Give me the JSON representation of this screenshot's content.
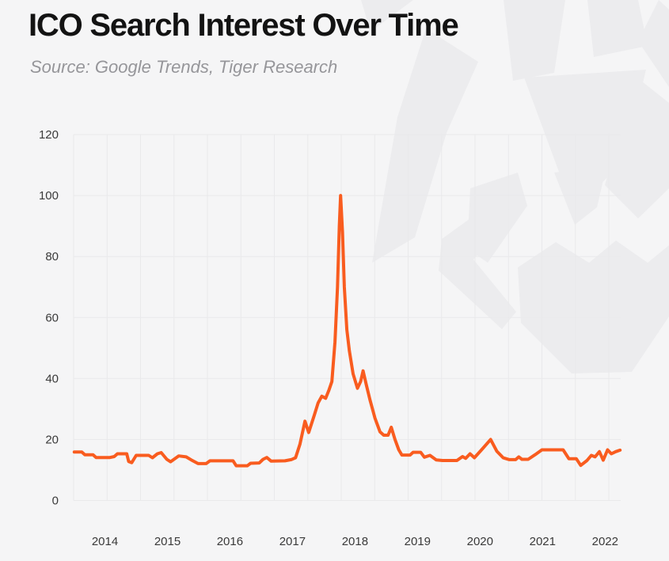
{
  "header": {
    "title": "ICO Search Interest Over Time",
    "subtitle": "Source: Google Trends, Tiger Research"
  },
  "colors": {
    "background": "#f5f5f6",
    "line": "#f95c1f",
    "grid": "#e9e9eb",
    "axis_text": "#3a3a3a",
    "watermark": "#ececee"
  },
  "chart_data": {
    "type": "line",
    "title": "ICO Search Interest Over Time",
    "source": "Google Trends, Tiger Research",
    "xlabel": "",
    "ylabel": "",
    "x_unit": "decimal_year",
    "x_range": [
      2013.5,
      2022.25
    ],
    "ylim": [
      0,
      120
    ],
    "y_ticks": [
      0,
      20,
      40,
      60,
      80,
      100,
      120
    ],
    "x_ticks": [
      2014,
      2015,
      2016,
      2017,
      2018,
      2019,
      2020,
      2021,
      2022
    ],
    "grid": "both",
    "legend": "none",
    "series": [
      {
        "name": "ICO search interest",
        "points": [
          [
            2013.51,
            15.9
          ],
          [
            2013.63,
            15.9
          ],
          [
            2013.68,
            15.0
          ],
          [
            2013.81,
            15.0
          ],
          [
            2013.86,
            14.1
          ],
          [
            2014.08,
            14.1
          ],
          [
            2014.15,
            14.4
          ],
          [
            2014.2,
            15.3
          ],
          [
            2014.35,
            15.3
          ],
          [
            2014.38,
            12.8
          ],
          [
            2014.43,
            12.4
          ],
          [
            2014.5,
            14.8
          ],
          [
            2014.7,
            14.8
          ],
          [
            2014.76,
            14.0
          ],
          [
            2014.84,
            15.3
          ],
          [
            2014.9,
            15.7
          ],
          [
            2014.99,
            13.5
          ],
          [
            2015.05,
            12.7
          ],
          [
            2015.18,
            14.6
          ],
          [
            2015.3,
            14.3
          ],
          [
            2015.38,
            13.3
          ],
          [
            2015.49,
            12.1
          ],
          [
            2015.62,
            12.1
          ],
          [
            2015.68,
            13.0
          ],
          [
            2016.05,
            13.0
          ],
          [
            2016.1,
            11.4
          ],
          [
            2016.28,
            11.4
          ],
          [
            2016.33,
            12.2
          ],
          [
            2016.47,
            12.3
          ],
          [
            2016.53,
            13.5
          ],
          [
            2016.59,
            14.1
          ],
          [
            2016.66,
            12.9
          ],
          [
            2016.88,
            13.0
          ],
          [
            2016.98,
            13.4
          ],
          [
            2017.05,
            14.0
          ],
          [
            2017.12,
            18.5
          ],
          [
            2017.2,
            26.0
          ],
          [
            2017.26,
            22.3
          ],
          [
            2017.35,
            28.0
          ],
          [
            2017.41,
            32.0
          ],
          [
            2017.47,
            34.2
          ],
          [
            2017.53,
            33.5
          ],
          [
            2017.58,
            36.0
          ],
          [
            2017.63,
            39.0
          ],
          [
            2017.68,
            52.0
          ],
          [
            2017.72,
            70.0
          ],
          [
            2017.75,
            90.0
          ],
          [
            2017.77,
            100.0
          ],
          [
            2017.8,
            88.0
          ],
          [
            2017.83,
            70.0
          ],
          [
            2017.87,
            56.0
          ],
          [
            2017.91,
            49.0
          ],
          [
            2017.97,
            41.5
          ],
          [
            2018.04,
            36.8
          ],
          [
            2018.09,
            39.0
          ],
          [
            2018.13,
            42.5
          ],
          [
            2018.18,
            38.0
          ],
          [
            2018.24,
            33.0
          ],
          [
            2018.32,
            27.0
          ],
          [
            2018.4,
            22.5
          ],
          [
            2018.46,
            21.4
          ],
          [
            2018.53,
            21.4
          ],
          [
            2018.58,
            24.0
          ],
          [
            2018.64,
            20.0
          ],
          [
            2018.7,
            16.6
          ],
          [
            2018.75,
            14.9
          ],
          [
            2018.88,
            14.9
          ],
          [
            2018.93,
            15.8
          ],
          [
            2019.05,
            15.8
          ],
          [
            2019.11,
            14.2
          ],
          [
            2019.2,
            14.8
          ],
          [
            2019.3,
            13.3
          ],
          [
            2019.4,
            13.1
          ],
          [
            2019.63,
            13.1
          ],
          [
            2019.72,
            14.4
          ],
          [
            2019.77,
            13.8
          ],
          [
            2019.84,
            15.3
          ],
          [
            2019.91,
            14.0
          ],
          [
            2020.02,
            16.5
          ],
          [
            2020.17,
            20.0
          ],
          [
            2020.27,
            16.1
          ],
          [
            2020.37,
            14.0
          ],
          [
            2020.47,
            13.4
          ],
          [
            2020.57,
            13.4
          ],
          [
            2020.62,
            14.3
          ],
          [
            2020.67,
            13.5
          ],
          [
            2020.77,
            13.5
          ],
          [
            2020.88,
            15.0
          ],
          [
            2020.99,
            16.6
          ],
          [
            2021.33,
            16.6
          ],
          [
            2021.42,
            13.7
          ],
          [
            2021.54,
            13.7
          ],
          [
            2021.61,
            11.5
          ],
          [
            2021.71,
            13.1
          ],
          [
            2021.78,
            14.8
          ],
          [
            2021.84,
            14.3
          ],
          [
            2021.91,
            16.0
          ],
          [
            2021.97,
            13.2
          ],
          [
            2022.04,
            16.6
          ],
          [
            2022.1,
            15.3
          ],
          [
            2022.17,
            16.0
          ],
          [
            2022.24,
            16.5
          ]
        ]
      }
    ]
  }
}
